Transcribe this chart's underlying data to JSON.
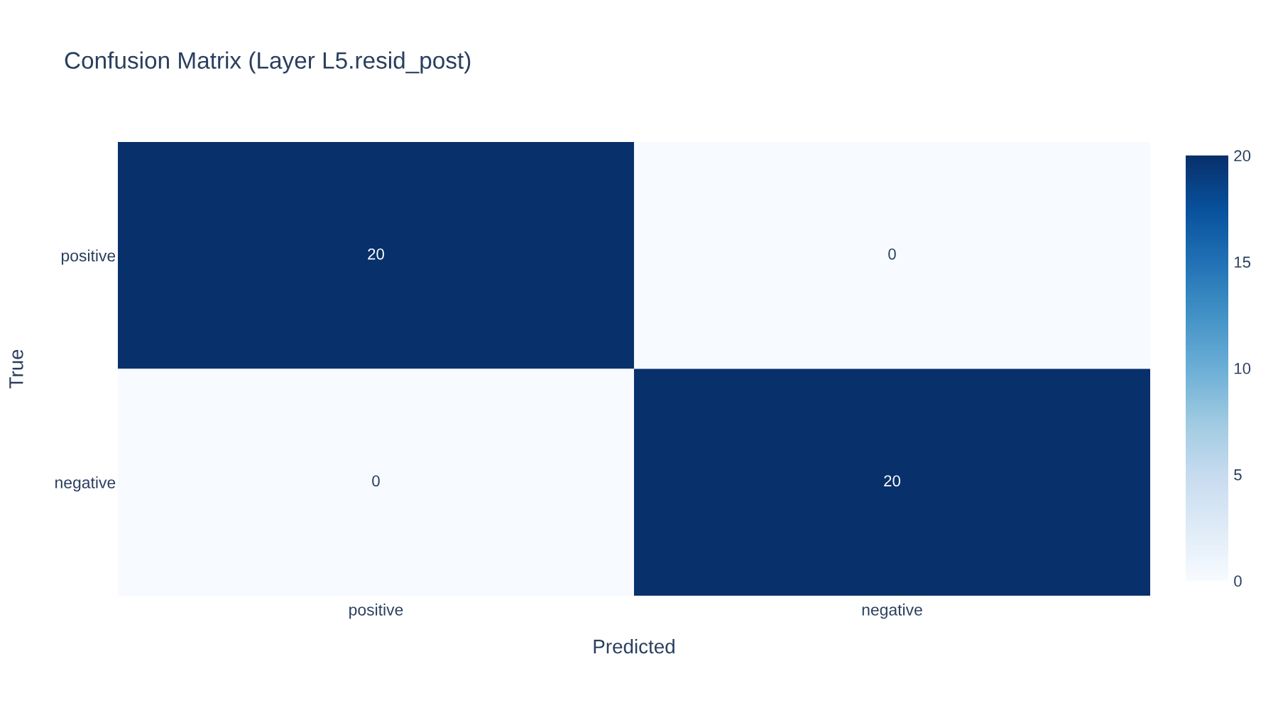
{
  "chart_data": {
    "type": "heatmap",
    "title": "Confusion Matrix (Layer L5.resid_post)",
    "xlabel": "Predicted",
    "ylabel": "True",
    "categories": [
      "positive",
      "negative"
    ],
    "y_categories": [
      "positive",
      "negative"
    ],
    "cells": [
      [
        20,
        0
      ],
      [
        0,
        20
      ]
    ],
    "data_labels": true,
    "clim": [
      0,
      20
    ],
    "cticks": [
      0,
      5,
      10,
      15,
      20
    ]
  }
}
